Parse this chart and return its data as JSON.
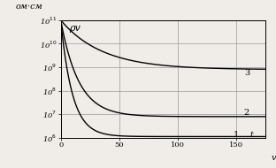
{
  "xlabel_v": "v",
  "ylabel_om": "ом·см",
  "rho_label": "ρv",
  "t_label": "t",
  "xlim": [
    0,
    175
  ],
  "ylim_log": [
    6,
    11
  ],
  "xticks": [
    0,
    50,
    100,
    150
  ],
  "ytick_powers": [
    6,
    7,
    8,
    9,
    10,
    11
  ],
  "ytick_labels": [
    "10$^6$",
    "10$^7$",
    "10$^8$",
    "10$^9$",
    "10$^{10}$",
    "10$^{11}$"
  ],
  "curve_labels": [
    "1",
    "2",
    "3"
  ],
  "start_power": 11.0,
  "curve1_asymptote": 6.05,
  "curve2_asymptote": 6.9,
  "curve3_asymptote": 8.9,
  "decay_rate1": 0.1,
  "decay_rate2": 0.065,
  "decay_rate3": 0.028,
  "line_color": "#000000",
  "bg_color": "#f0ede8",
  "grid_color": "#999999",
  "label_fontsize": 7,
  "tick_fontsize": 6,
  "curve_label_fontsize": 7,
  "linewidth": 1.0
}
